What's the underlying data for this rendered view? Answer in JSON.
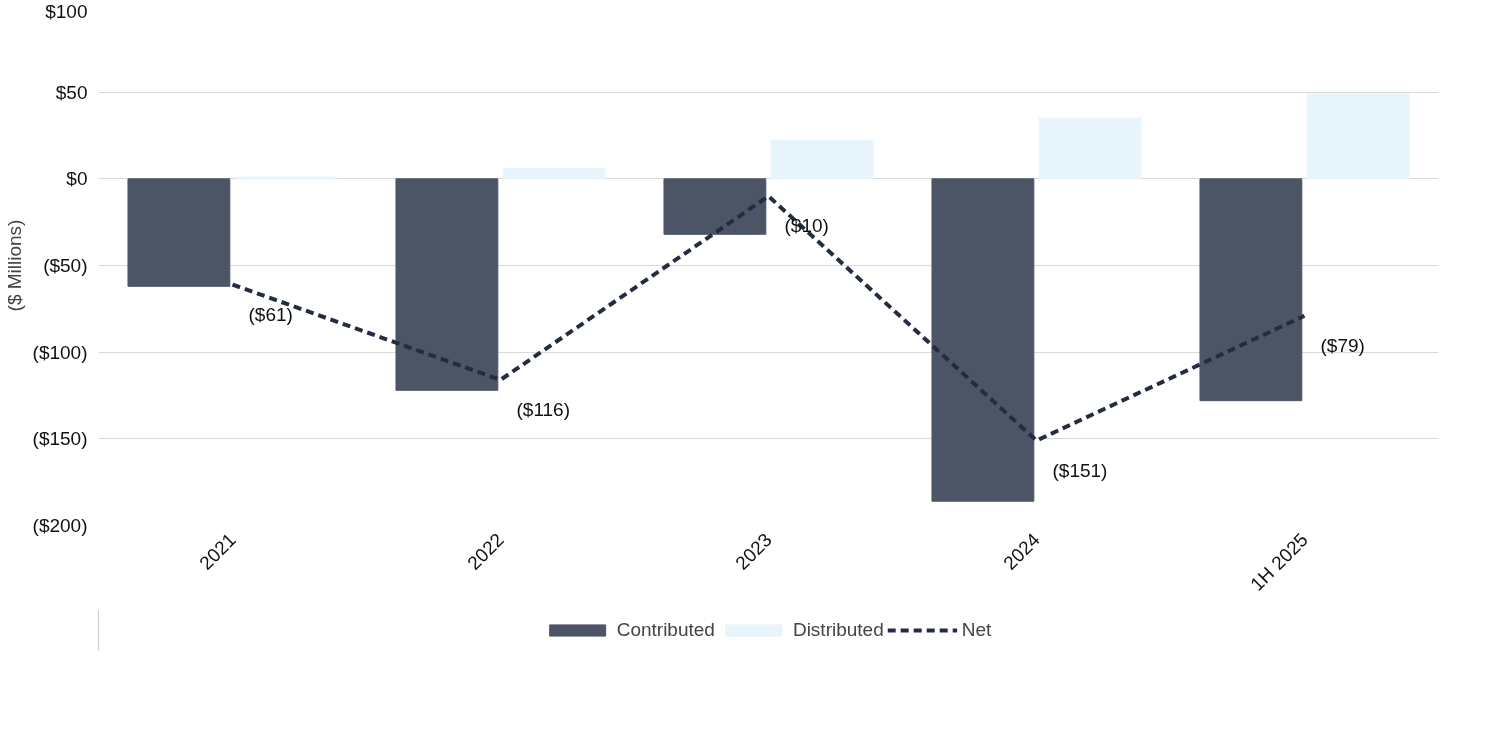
{
  "chart_data": {
    "type": "bar",
    "ylabel": "($ Millions)",
    "categories": [
      "2021",
      "2022",
      "2023",
      "2024",
      "1H 2025"
    ],
    "series": [
      {
        "name": "Contributed",
        "color": "#4b5566",
        "values": [
          -62,
          -122,
          -32,
          -186,
          -128
        ]
      },
      {
        "name": "Distributed",
        "color": "#e8f4fc",
        "values": [
          1,
          6,
          22,
          35,
          49
        ]
      },
      {
        "name": "Net",
        "type": "line",
        "color": "#232d42",
        "line_style": "dashed",
        "values": [
          -61,
          -116,
          -10,
          -151,
          -79
        ],
        "value_labels": [
          "($61)",
          "($116)",
          "($10)",
          "($151)",
          "($79)"
        ]
      }
    ],
    "ylim": [
      -200,
      100
    ],
    "yticks": [
      {
        "value": 100,
        "label": "$100"
      },
      {
        "value": 50,
        "label": "$50"
      },
      {
        "value": 0,
        "label": "$0"
      },
      {
        "value": -50,
        "label": "($50)"
      },
      {
        "value": -100,
        "label": "($100)"
      },
      {
        "value": -150,
        "label": "($150)"
      },
      {
        "value": -200,
        "label": "($200)"
      }
    ],
    "grid": "y",
    "legend": "bottom"
  }
}
